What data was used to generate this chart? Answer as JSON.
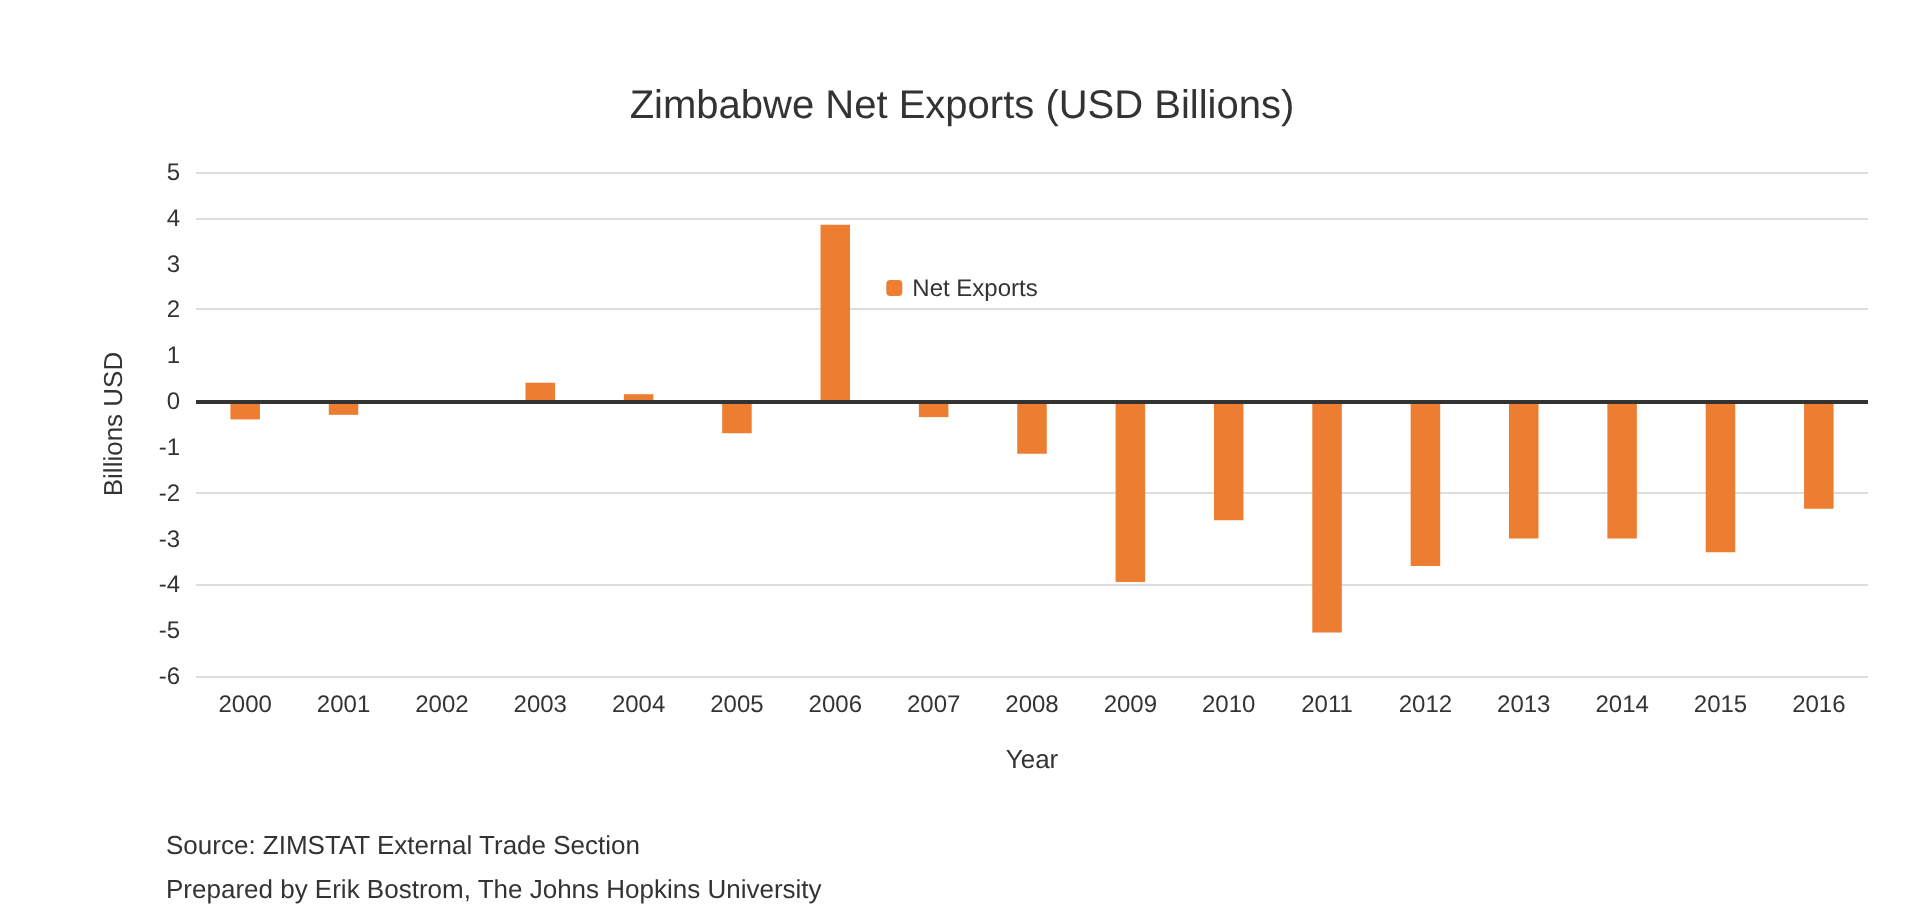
{
  "chart_data": {
    "type": "bar",
    "title": "Zimbabwe Net Exports (USD Billions)",
    "xlabel": "Year",
    "ylabel": "Billions USD",
    "categories": [
      "2000",
      "2001",
      "2002",
      "2003",
      "2004",
      "2005",
      "2006",
      "2007",
      "2008",
      "2009",
      "2010",
      "2011",
      "2012",
      "2013",
      "2014",
      "2015",
      "2016"
    ],
    "series": [
      {
        "name": "Net Exports",
        "color": "#ed7d31",
        "values": [
          -0.4,
          -0.3,
          null,
          0.4,
          0.15,
          -0.7,
          3.85,
          -0.35,
          -1.15,
          -3.95,
          -2.6,
          -5.05,
          -3.6,
          -3.0,
          -3.0,
          -3.3,
          -2.35
        ]
      }
    ],
    "ylim": [
      -6,
      5
    ],
    "yticks": [
      -6,
      -5,
      -4,
      -3,
      -2,
      -1,
      0,
      1,
      2,
      3,
      4,
      5
    ],
    "grid": "y",
    "legend": "top",
    "annotations": [
      "Source: ZIMSTAT External Trade Section",
      "Prepared by Erik Bostrom, The Johns Hopkins University"
    ]
  }
}
